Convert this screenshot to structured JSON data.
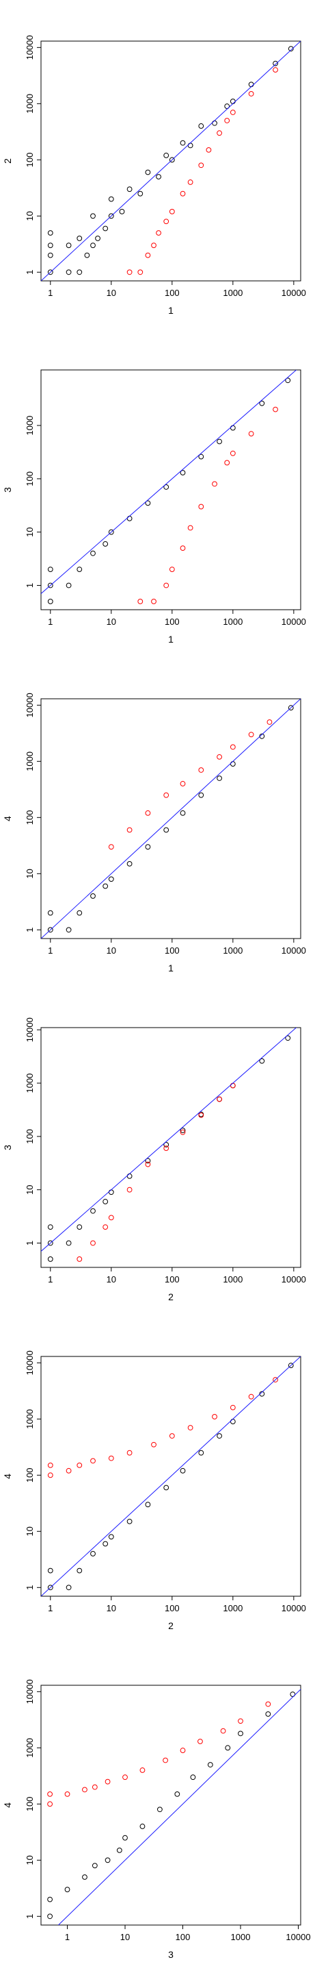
{
  "chart_data": [
    {
      "type": "scatter",
      "xlabel": "1",
      "ylabel": "2",
      "xscale": "log",
      "yscale": "log",
      "xlim": [
        0.7,
        13000
      ],
      "ylim": [
        0.7,
        13000
      ],
      "xticks": [
        "1",
        "10",
        "100",
        "1000",
        "10000"
      ],
      "yticks": [
        "1",
        "10",
        "100",
        "1000",
        "10000"
      ],
      "reference_line": "y = x",
      "series": [
        {
          "color": "#000000",
          "points": [
            [
              1,
              1
            ],
            [
              1,
              2
            ],
            [
              1,
              3
            ],
            [
              1,
              5
            ],
            [
              2,
              1
            ],
            [
              2,
              3
            ],
            [
              3,
              1
            ],
            [
              3,
              4
            ],
            [
              4,
              2
            ],
            [
              5,
              3
            ],
            [
              5,
              10
            ],
            [
              6,
              4
            ],
            [
              8,
              6
            ],
            [
              10,
              10
            ],
            [
              10,
              20
            ],
            [
              15,
              12
            ],
            [
              20,
              30
            ],
            [
              30,
              25
            ],
            [
              40,
              60
            ],
            [
              60,
              50
            ],
            [
              80,
              120
            ],
            [
              100,
              100
            ],
            [
              150,
              200
            ],
            [
              200,
              180
            ],
            [
              300,
              400
            ],
            [
              500,
              450
            ],
            [
              800,
              900
            ],
            [
              1000,
              1100
            ],
            [
              2000,
              2200
            ],
            [
              5000,
              5200
            ],
            [
              9000,
              9500
            ]
          ]
        },
        {
          "color": "#ff0000",
          "points": [
            [
              20,
              1
            ],
            [
              30,
              1
            ],
            [
              40,
              2
            ],
            [
              50,
              3
            ],
            [
              60,
              5
            ],
            [
              80,
              8
            ],
            [
              100,
              12
            ],
            [
              150,
              25
            ],
            [
              200,
              40
            ],
            [
              300,
              80
            ],
            [
              400,
              150
            ],
            [
              600,
              300
            ],
            [
              800,
              500
            ],
            [
              1000,
              700
            ],
            [
              2000,
              1500
            ],
            [
              5000,
              4000
            ]
          ]
        }
      ]
    },
    {
      "type": "scatter",
      "xlabel": "1",
      "ylabel": "3",
      "xscale": "log",
      "yscale": "log",
      "xlim": [
        0.7,
        13000
      ],
      "ylim": [
        0.35,
        11000
      ],
      "xticks": [
        "1",
        "10",
        "100",
        "1000",
        "10000"
      ],
      "yticks": [
        "1",
        "10",
        "100",
        "1000"
      ],
      "reference_line": "y = x",
      "series": [
        {
          "color": "#000000",
          "points": [
            [
              1,
              0.5
            ],
            [
              1,
              1
            ],
            [
              1,
              2
            ],
            [
              2,
              1
            ],
            [
              3,
              2
            ],
            [
              5,
              4
            ],
            [
              8,
              6
            ],
            [
              10,
              10
            ],
            [
              20,
              18
            ],
            [
              40,
              35
            ],
            [
              80,
              70
            ],
            [
              150,
              130
            ],
            [
              300,
              260
            ],
            [
              600,
              500
            ],
            [
              1000,
              900
            ],
            [
              3000,
              2600
            ],
            [
              8000,
              7000
            ]
          ]
        },
        {
          "color": "#ff0000",
          "points": [
            [
              30,
              0.5
            ],
            [
              50,
              0.5
            ],
            [
              80,
              1
            ],
            [
              100,
              2
            ],
            [
              150,
              5
            ],
            [
              200,
              12
            ],
            [
              300,
              30
            ],
            [
              500,
              80
            ],
            [
              800,
              200
            ],
            [
              1000,
              300
            ],
            [
              2000,
              700
            ],
            [
              5000,
              2000
            ]
          ]
        }
      ]
    },
    {
      "type": "scatter",
      "xlabel": "1",
      "ylabel": "4",
      "xscale": "log",
      "yscale": "log",
      "xlim": [
        0.7,
        13000
      ],
      "ylim": [
        0.7,
        13000
      ],
      "xticks": [
        "1",
        "10",
        "100",
        "1000",
        "10000"
      ],
      "yticks": [
        "1",
        "10",
        "100",
        "1000",
        "10000"
      ],
      "reference_line": "y = x",
      "series": [
        {
          "color": "#000000",
          "points": [
            [
              1,
              1
            ],
            [
              1,
              2
            ],
            [
              2,
              1
            ],
            [
              3,
              2
            ],
            [
              5,
              4
            ],
            [
              8,
              6
            ],
            [
              10,
              8
            ],
            [
              20,
              15
            ],
            [
              40,
              30
            ],
            [
              80,
              60
            ],
            [
              150,
              120
            ],
            [
              300,
              250
            ],
            [
              600,
              500
            ],
            [
              1000,
              900
            ],
            [
              3000,
              2800
            ],
            [
              9000,
              9000
            ]
          ]
        },
        {
          "color": "#ff0000",
          "points": [
            [
              10,
              30
            ],
            [
              20,
              60
            ],
            [
              40,
              120
            ],
            [
              80,
              250
            ],
            [
              150,
              400
            ],
            [
              300,
              700
            ],
            [
              600,
              1200
            ],
            [
              1000,
              1800
            ],
            [
              2000,
              3000
            ],
            [
              4000,
              5000
            ]
          ]
        }
      ]
    },
    {
      "type": "scatter",
      "xlabel": "2",
      "ylabel": "3",
      "xscale": "log",
      "yscale": "log",
      "xlim": [
        0.7,
        13000
      ],
      "ylim": [
        0.35,
        11000
      ],
      "xticks": [
        "1",
        "10",
        "100",
        "1000",
        "10000"
      ],
      "yticks": [
        "1",
        "10",
        "100",
        "1000",
        "10000"
      ],
      "reference_line": "y = x",
      "series": [
        {
          "color": "#000000",
          "points": [
            [
              1,
              0.5
            ],
            [
              1,
              1
            ],
            [
              1,
              2
            ],
            [
              2,
              1
            ],
            [
              3,
              2
            ],
            [
              5,
              4
            ],
            [
              8,
              6
            ],
            [
              10,
              9
            ],
            [
              20,
              18
            ],
            [
              40,
              35
            ],
            [
              80,
              70
            ],
            [
              150,
              130
            ],
            [
              300,
              260
            ],
            [
              600,
              500
            ],
            [
              1000,
              900
            ],
            [
              3000,
              2600
            ],
            [
              8000,
              7000
            ]
          ]
        },
        {
          "color": "#ff0000",
          "points": [
            [
              3,
              0.5
            ],
            [
              5,
              1
            ],
            [
              8,
              2
            ],
            [
              10,
              3
            ],
            [
              20,
              10
            ],
            [
              40,
              30
            ],
            [
              80,
              60
            ],
            [
              150,
              120
            ],
            [
              300,
              250
            ],
            [
              600,
              500
            ],
            [
              1000,
              900
            ]
          ]
        }
      ]
    },
    {
      "type": "scatter",
      "xlabel": "2",
      "ylabel": "4",
      "xscale": "log",
      "yscale": "log",
      "xlim": [
        0.7,
        13000
      ],
      "ylim": [
        0.7,
        13000
      ],
      "xticks": [
        "1",
        "10",
        "100",
        "1000",
        "10000"
      ],
      "yticks": [
        "1",
        "10",
        "100",
        "1000",
        "10000"
      ],
      "reference_line": "y = x",
      "series": [
        {
          "color": "#000000",
          "points": [
            [
              1,
              1
            ],
            [
              1,
              2
            ],
            [
              2,
              1
            ],
            [
              3,
              2
            ],
            [
              5,
              4
            ],
            [
              8,
              6
            ],
            [
              10,
              8
            ],
            [
              20,
              15
            ],
            [
              40,
              30
            ],
            [
              80,
              60
            ],
            [
              150,
              120
            ],
            [
              300,
              250
            ],
            [
              600,
              500
            ],
            [
              1000,
              900
            ],
            [
              3000,
              2800
            ],
            [
              9000,
              9000
            ]
          ]
        },
        {
          "color": "#ff0000",
          "points": [
            [
              1,
              100
            ],
            [
              1,
              150
            ],
            [
              2,
              120
            ],
            [
              3,
              150
            ],
            [
              5,
              180
            ],
            [
              10,
              200
            ],
            [
              20,
              250
            ],
            [
              50,
              350
            ],
            [
              100,
              500
            ],
            [
              200,
              700
            ],
            [
              500,
              1100
            ],
            [
              1000,
              1600
            ],
            [
              2000,
              2500
            ],
            [
              5000,
              5000
            ]
          ]
        }
      ]
    },
    {
      "type": "scatter",
      "xlabel": "3",
      "ylabel": "4",
      "xscale": "log",
      "yscale": "log",
      "xlim": [
        0.35,
        11000
      ],
      "ylim": [
        0.7,
        13000
      ],
      "xticks": [
        "1",
        "10",
        "100",
        "1000",
        "10000"
      ],
      "yticks": [
        "1",
        "10",
        "100",
        "1000",
        "10000"
      ],
      "reference_line": "y = x",
      "series": [
        {
          "color": "#000000",
          "points": [
            [
              0.5,
              1
            ],
            [
              0.5,
              2
            ],
            [
              1,
              3
            ],
            [
              2,
              5
            ],
            [
              3,
              8
            ],
            [
              5,
              10
            ],
            [
              8,
              15
            ],
            [
              10,
              25
            ],
            [
              20,
              40
            ],
            [
              40,
              80
            ],
            [
              80,
              150
            ],
            [
              150,
              300
            ],
            [
              300,
              500
            ],
            [
              600,
              1000
            ],
            [
              1000,
              1800
            ],
            [
              3000,
              4000
            ],
            [
              8000,
              9000
            ]
          ]
        },
        {
          "color": "#ff0000",
          "points": [
            [
              0.5,
              100
            ],
            [
              0.5,
              150
            ],
            [
              1,
              150
            ],
            [
              2,
              180
            ],
            [
              3,
              200
            ],
            [
              5,
              250
            ],
            [
              10,
              300
            ],
            [
              20,
              400
            ],
            [
              50,
              600
            ],
            [
              100,
              900
            ],
            [
              200,
              1300
            ],
            [
              500,
              2000
            ],
            [
              1000,
              3000
            ],
            [
              3000,
              6000
            ]
          ]
        }
      ]
    }
  ]
}
